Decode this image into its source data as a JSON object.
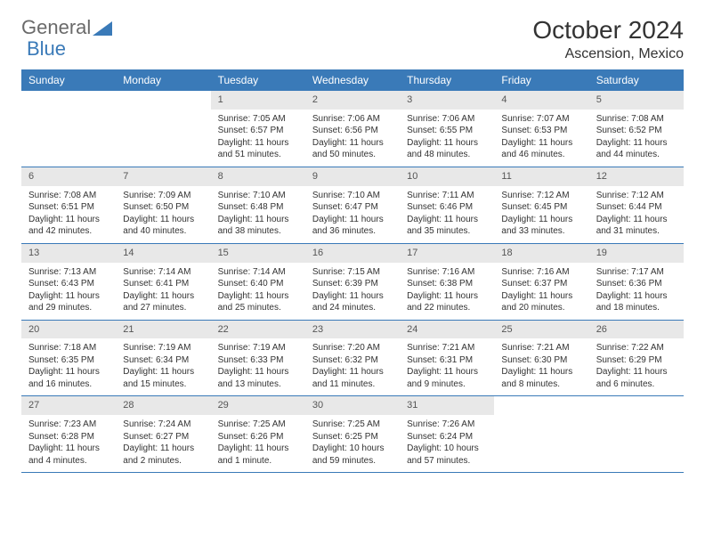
{
  "brand": {
    "part1": "General",
    "part2": "Blue"
  },
  "title": "October 2024",
  "location": "Ascension, Mexico",
  "colors": {
    "header_bg": "#3a7ab8",
    "header_fg": "#ffffff",
    "daynum_bg": "#e8e8e8",
    "row_border": "#3a7ab8",
    "text": "#333333",
    "logo_gray": "#6a6a6a",
    "logo_blue": "#3a7ab8",
    "page_bg": "#ffffff"
  },
  "columns": [
    "Sunday",
    "Monday",
    "Tuesday",
    "Wednesday",
    "Thursday",
    "Friday",
    "Saturday"
  ],
  "weeks": [
    [
      null,
      null,
      {
        "n": "1",
        "sr": "7:05 AM",
        "ss": "6:57 PM",
        "dl": "11 hours and 51 minutes."
      },
      {
        "n": "2",
        "sr": "7:06 AM",
        "ss": "6:56 PM",
        "dl": "11 hours and 50 minutes."
      },
      {
        "n": "3",
        "sr": "7:06 AM",
        "ss": "6:55 PM",
        "dl": "11 hours and 48 minutes."
      },
      {
        "n": "4",
        "sr": "7:07 AM",
        "ss": "6:53 PM",
        "dl": "11 hours and 46 minutes."
      },
      {
        "n": "5",
        "sr": "7:08 AM",
        "ss": "6:52 PM",
        "dl": "11 hours and 44 minutes."
      }
    ],
    [
      {
        "n": "6",
        "sr": "7:08 AM",
        "ss": "6:51 PM",
        "dl": "11 hours and 42 minutes."
      },
      {
        "n": "7",
        "sr": "7:09 AM",
        "ss": "6:50 PM",
        "dl": "11 hours and 40 minutes."
      },
      {
        "n": "8",
        "sr": "7:10 AM",
        "ss": "6:48 PM",
        "dl": "11 hours and 38 minutes."
      },
      {
        "n": "9",
        "sr": "7:10 AM",
        "ss": "6:47 PM",
        "dl": "11 hours and 36 minutes."
      },
      {
        "n": "10",
        "sr": "7:11 AM",
        "ss": "6:46 PM",
        "dl": "11 hours and 35 minutes."
      },
      {
        "n": "11",
        "sr": "7:12 AM",
        "ss": "6:45 PM",
        "dl": "11 hours and 33 minutes."
      },
      {
        "n": "12",
        "sr": "7:12 AM",
        "ss": "6:44 PM",
        "dl": "11 hours and 31 minutes."
      }
    ],
    [
      {
        "n": "13",
        "sr": "7:13 AM",
        "ss": "6:43 PM",
        "dl": "11 hours and 29 minutes."
      },
      {
        "n": "14",
        "sr": "7:14 AM",
        "ss": "6:41 PM",
        "dl": "11 hours and 27 minutes."
      },
      {
        "n": "15",
        "sr": "7:14 AM",
        "ss": "6:40 PM",
        "dl": "11 hours and 25 minutes."
      },
      {
        "n": "16",
        "sr": "7:15 AM",
        "ss": "6:39 PM",
        "dl": "11 hours and 24 minutes."
      },
      {
        "n": "17",
        "sr": "7:16 AM",
        "ss": "6:38 PM",
        "dl": "11 hours and 22 minutes."
      },
      {
        "n": "18",
        "sr": "7:16 AM",
        "ss": "6:37 PM",
        "dl": "11 hours and 20 minutes."
      },
      {
        "n": "19",
        "sr": "7:17 AM",
        "ss": "6:36 PM",
        "dl": "11 hours and 18 minutes."
      }
    ],
    [
      {
        "n": "20",
        "sr": "7:18 AM",
        "ss": "6:35 PM",
        "dl": "11 hours and 16 minutes."
      },
      {
        "n": "21",
        "sr": "7:19 AM",
        "ss": "6:34 PM",
        "dl": "11 hours and 15 minutes."
      },
      {
        "n": "22",
        "sr": "7:19 AM",
        "ss": "6:33 PM",
        "dl": "11 hours and 13 minutes."
      },
      {
        "n": "23",
        "sr": "7:20 AM",
        "ss": "6:32 PM",
        "dl": "11 hours and 11 minutes."
      },
      {
        "n": "24",
        "sr": "7:21 AM",
        "ss": "6:31 PM",
        "dl": "11 hours and 9 minutes."
      },
      {
        "n": "25",
        "sr": "7:21 AM",
        "ss": "6:30 PM",
        "dl": "11 hours and 8 minutes."
      },
      {
        "n": "26",
        "sr": "7:22 AM",
        "ss": "6:29 PM",
        "dl": "11 hours and 6 minutes."
      }
    ],
    [
      {
        "n": "27",
        "sr": "7:23 AM",
        "ss": "6:28 PM",
        "dl": "11 hours and 4 minutes."
      },
      {
        "n": "28",
        "sr": "7:24 AM",
        "ss": "6:27 PM",
        "dl": "11 hours and 2 minutes."
      },
      {
        "n": "29",
        "sr": "7:25 AM",
        "ss": "6:26 PM",
        "dl": "11 hours and 1 minute."
      },
      {
        "n": "30",
        "sr": "7:25 AM",
        "ss": "6:25 PM",
        "dl": "10 hours and 59 minutes."
      },
      {
        "n": "31",
        "sr": "7:26 AM",
        "ss": "6:24 PM",
        "dl": "10 hours and 57 minutes."
      },
      null,
      null
    ]
  ],
  "labels": {
    "sunrise": "Sunrise:",
    "sunset": "Sunset:",
    "daylight": "Daylight:"
  }
}
